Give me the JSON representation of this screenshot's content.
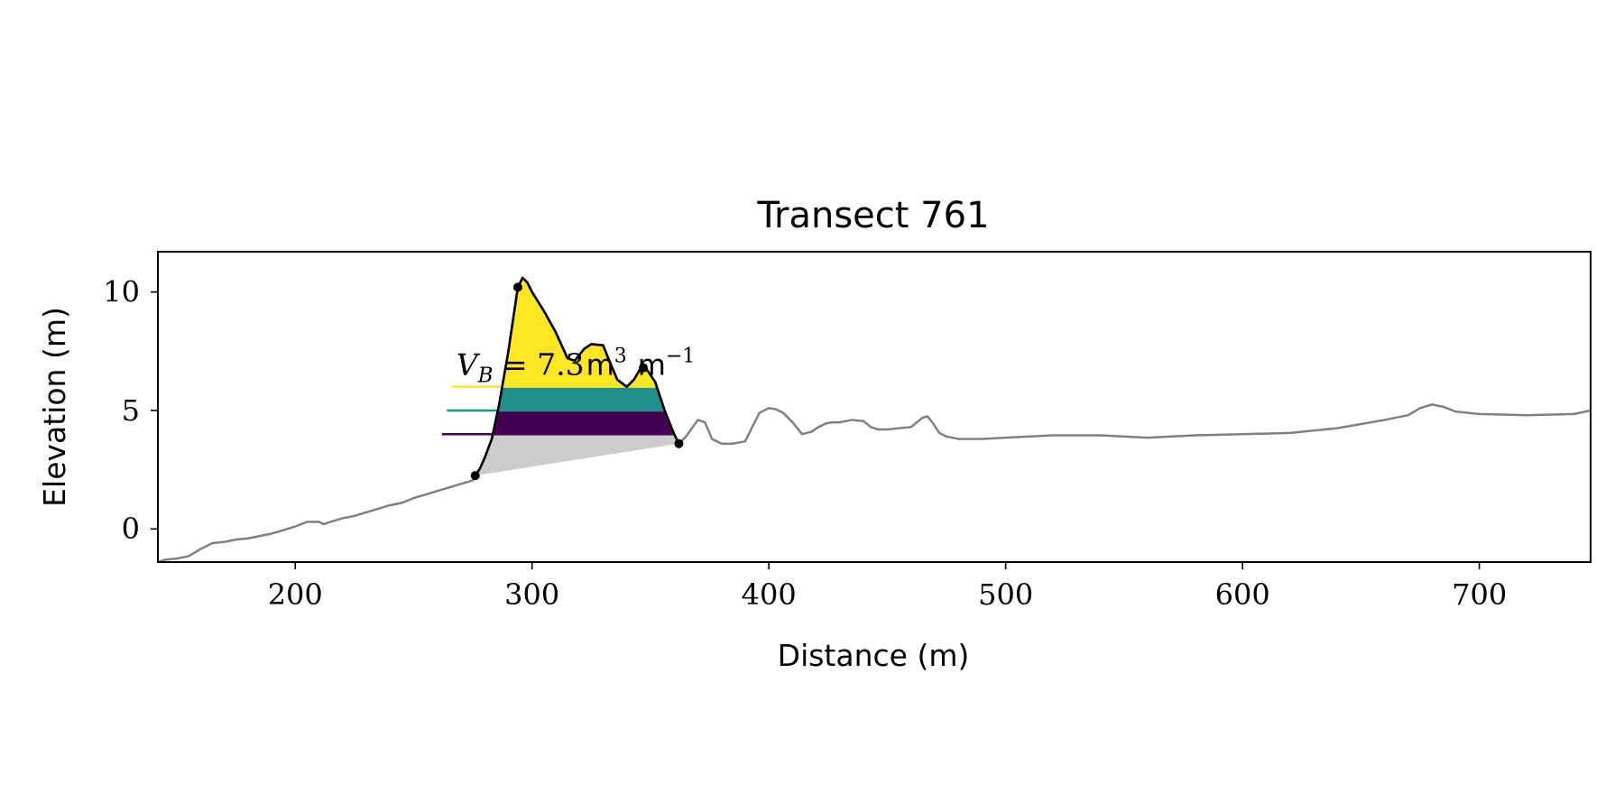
{
  "chart_data": {
    "type": "area",
    "title": "Transect 761",
    "xlabel": "Distance (m)",
    "ylabel": "Elevation (m)",
    "xlim": [
      142,
      747
    ],
    "ylim": [
      -1.4,
      11.7
    ],
    "xticks": [
      200,
      300,
      400,
      500,
      600,
      700
    ],
    "yticks": [
      0,
      5,
      10
    ],
    "grid": false,
    "annotation": {
      "symbol": "V",
      "subscript": "B",
      "value_text": "7.3",
      "unit_main": "m",
      "unit_exp": "3",
      "unit_per": "m",
      "unit_per_exp": "−1",
      "anchor": [
        268,
        6.5
      ]
    },
    "profile": {
      "color": "#808080",
      "x": [
        142,
        145,
        150,
        155,
        160,
        165,
        170,
        175,
        180,
        185,
        190,
        195,
        200,
        205,
        210,
        212,
        215,
        220,
        225,
        230,
        235,
        240,
        245,
        250,
        255,
        260,
        265,
        270,
        275,
        276,
        278,
        280,
        283,
        286,
        290,
        294,
        296,
        298,
        300,
        305,
        310,
        315,
        318,
        322,
        325,
        330,
        333,
        336,
        340,
        343,
        346,
        348,
        352,
        356,
        360,
        362,
        365,
        370,
        373,
        376,
        380,
        385,
        390,
        393,
        396,
        400,
        403,
        406,
        410,
        414,
        418,
        421,
        424,
        427,
        430,
        435,
        440,
        443,
        446,
        450,
        455,
        460,
        465,
        467,
        469,
        472,
        475,
        480,
        490,
        500,
        520,
        540,
        560,
        580,
        600,
        620,
        640,
        660,
        670,
        675,
        680,
        685,
        690,
        700,
        720,
        740,
        747
      ],
      "y": [
        -1.4,
        -1.3,
        -1.25,
        -1.15,
        -0.85,
        -0.6,
        -0.55,
        -0.45,
        -0.4,
        -0.3,
        -0.2,
        -0.05,
        0.1,
        0.3,
        0.3,
        0.2,
        0.3,
        0.45,
        0.55,
        0.7,
        0.85,
        1.0,
        1.1,
        1.3,
        1.45,
        1.6,
        1.75,
        1.9,
        2.05,
        2.25,
        2.55,
        3.0,
        3.8,
        5.2,
        7.5,
        10.2,
        10.6,
        10.4,
        10.0,
        9.2,
        8.3,
        7.2,
        7.1,
        7.6,
        7.8,
        7.75,
        7.0,
        6.3,
        6.0,
        6.3,
        6.8,
        6.8,
        6.2,
        5.0,
        4.0,
        3.6,
        3.9,
        4.6,
        4.5,
        3.8,
        3.6,
        3.6,
        3.7,
        4.3,
        4.9,
        5.1,
        5.05,
        4.9,
        4.5,
        4.0,
        4.1,
        4.3,
        4.45,
        4.5,
        4.5,
        4.6,
        4.55,
        4.3,
        4.2,
        4.2,
        4.25,
        4.3,
        4.7,
        4.75,
        4.5,
        4.05,
        3.9,
        3.8,
        3.8,
        3.85,
        3.95,
        3.95,
        3.85,
        3.95,
        4.0,
        4.05,
        4.25,
        4.6,
        4.8,
        5.1,
        5.25,
        5.15,
        4.95,
        4.85,
        4.8,
        4.85,
        5.0
      ]
    },
    "dune": {
      "color": "#000000",
      "x": [
        276,
        278,
        280,
        283,
        286,
        290,
        294,
        296,
        298,
        300,
        305,
        310,
        315,
        318,
        322,
        325,
        330,
        333,
        336,
        340,
        343,
        346,
        348,
        352,
        356,
        360,
        362
      ],
      "y": [
        2.25,
        2.55,
        3.0,
        3.8,
        5.2,
        7.5,
        10.2,
        10.6,
        10.4,
        10.0,
        9.2,
        8.3,
        7.2,
        7.1,
        7.6,
        7.8,
        7.75,
        7.0,
        6.3,
        6.0,
        6.3,
        6.8,
        6.8,
        6.2,
        5.0,
        4.0,
        3.6
      ]
    },
    "markers": {
      "x": [
        276,
        294,
        347,
        362
      ],
      "y": [
        2.25,
        10.2,
        6.8,
        3.6
      ]
    },
    "toe_line": {
      "color": "#cccccc",
      "from": [
        276,
        2.25
      ],
      "to": [
        362,
        3.6
      ]
    },
    "bands": [
      {
        "name": "",
        "color": "#440154",
        "level": 4.0,
        "top": 5.0,
        "line_start": 262
      },
      {
        "name": "",
        "color": "#21908c",
        "level": 5.0,
        "top": 6.0,
        "line_start": 264
      },
      {
        "name": "",
        "color": "#fde725",
        "level": 6.0,
        "top": 11.0,
        "line_start": 266
      }
    ]
  }
}
